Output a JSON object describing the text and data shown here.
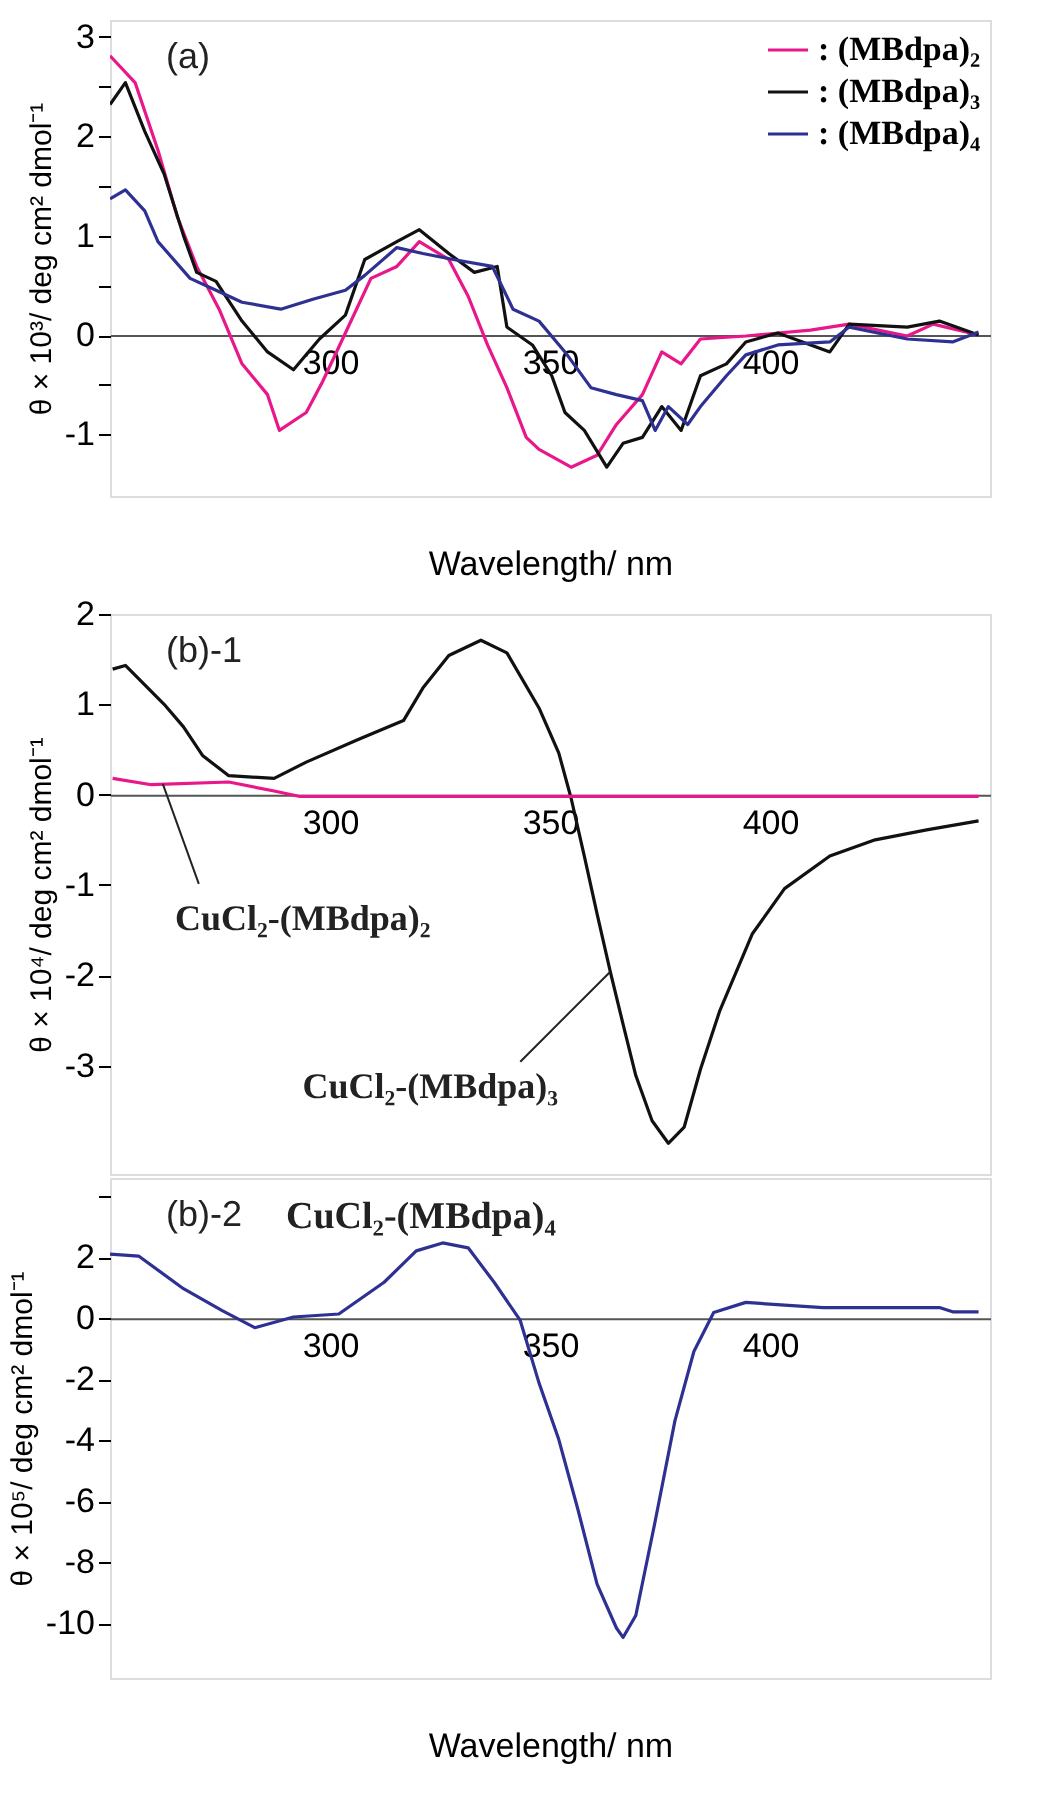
{
  "chart_data": [
    {
      "type": "line",
      "xlabel": "Wavelength/ nm",
      "ylabel": "θ × 10³/ deg cm² dmol⁻¹",
      "legend": "top right",
      "xlim": [
        250,
        450
      ],
      "xticks": [
        300,
        350,
        400
      ],
      "ylim": [
        -1.62,
        3.17
      ],
      "yticks": [
        -1,
        {
          "value": -0.5,
          "label": null
        },
        0,
        {
          "value": 0.5,
          "label": null
        },
        1,
        {
          "value": 1.5,
          "label": null
        },
        2,
        {
          "value": 2.5,
          "label": null
        },
        3
      ],
      "grid": false,
      "annotations": [
        "(a)"
      ],
      "series": [
        {
          "name": ": (MBdpa)₂",
          "color": "#e8178a",
          "x": [
            250,
            255.7,
            260.9,
            265.3,
            269.7,
            274.8,
            280,
            285.8,
            288.5,
            294.6,
            298.3,
            303.5,
            309.3,
            315.2,
            320.3,
            327,
            331.4,
            335.8,
            340.2,
            344.6,
            347.5,
            354.8,
            360.7,
            365.1,
            371,
            375.4,
            379.8,
            384.2,
            394.5,
            409.2,
            418,
            431.2,
            437.1,
            447.4
          ],
          "values": [
            2.81,
            2.54,
            1.86,
            1.19,
            0.69,
            0.26,
            -0.29,
            -0.6,
            -0.96,
            -0.78,
            -0.47,
            0.02,
            0.57,
            0.69,
            0.94,
            0.76,
            0.39,
            -0.1,
            -0.53,
            -1.03,
            -1.15,
            -1.33,
            -1.21,
            -0.9,
            -0.6,
            -0.17,
            -0.29,
            -0.04,
            -0.01,
            0.05,
            0.11,
            -0.01,
            0.11,
            0
          ]
        },
        {
          "name": ": (MBdpa)₃",
          "color": "#111111",
          "x": [
            250,
            253.5,
            257.9,
            262.3,
            266.7,
            269.7,
            274.1,
            280,
            285.8,
            291.7,
            297.6,
            303.5,
            307.9,
            315.2,
            320.3,
            327,
            332.8,
            338,
            340.2,
            346,
            350.4,
            353.4,
            357.8,
            362.9,
            366.6,
            371,
            375.4,
            379.8,
            384.2,
            390.1,
            394.5,
            401.8,
            413.6,
            418,
            431.2,
            438.5,
            447.4
          ],
          "values": [
            2.32,
            2.54,
            2.05,
            1.62,
            1.0,
            0.63,
            0.54,
            0.14,
            -0.17,
            -0.35,
            -0.04,
            0.2,
            0.76,
            0.94,
            1.06,
            0.82,
            0.63,
            0.69,
            0.08,
            -0.1,
            -0.41,
            -0.78,
            -0.96,
            -1.33,
            -1.09,
            -1.03,
            -0.72,
            -0.96,
            -0.41,
            -0.29,
            -0.07,
            0.02,
            -0.17,
            0.11,
            0.08,
            0.14,
            0
          ]
        },
        {
          "name": ": (MBdpa)₄",
          "color": "#2e3192",
          "x": [
            250,
            253.5,
            257.9,
            260.9,
            268.2,
            274.1,
            280,
            288.8,
            296.1,
            303.5,
            307.9,
            315.2,
            321.1,
            328,
            336.9,
            341.6,
            347.5,
            353.4,
            359.3,
            365.1,
            371,
            373.9,
            376.9,
            381.3,
            384.2,
            390.1,
            394.5,
            401.8,
            413.6,
            418,
            431.2,
            441.5,
            447.4
          ],
          "values": [
            1.37,
            1.46,
            1.25,
            0.94,
            0.57,
            0.45,
            0.33,
            0.26,
            0.36,
            0.45,
            0.6,
            0.88,
            0.82,
            0.76,
            0.69,
            0.26,
            0.14,
            -0.17,
            -0.53,
            -0.6,
            -0.66,
            -0.96,
            -0.72,
            -0.9,
            -0.72,
            -0.41,
            -0.2,
            -0.1,
            -0.07,
            0.08,
            -0.04,
            -0.07,
            0.03
          ]
        }
      ]
    },
    {
      "type": "line",
      "ylabel": "θ × 10⁴/ deg cm² dmol⁻¹",
      "legend": false,
      "xlim": [
        250,
        450
      ],
      "xticks": [
        300,
        350,
        400
      ],
      "ylim": [
        -4.2,
        2
      ],
      "yticks": [
        -3,
        -2,
        -1,
        0,
        1,
        2
      ],
      "grid": false,
      "annotations": [
        "(b)-1",
        {
          "text": "CuCl₂-(MBdpa)₂",
          "x": 262,
          "y": 0.12
        },
        {
          "text": "CuCl₂-(MBdpa)₃",
          "x": 363.7,
          "y": -1.96
        }
      ],
      "series": [
        {
          "color": "#111111",
          "x": [
            250.6,
            253.5,
            262.3,
            266.7,
            271.1,
            277,
            287.3,
            294.6,
            306.4,
            316.7,
            321.1,
            327,
            334.3,
            340.2,
            347.5,
            352,
            354.8,
            357.8,
            360.7,
            363.7,
            366.6,
            369.5,
            373.2,
            376.9,
            380.5,
            384.2,
            388.6,
            396,
            403.3,
            413.6,
            423.9,
            435.6,
            447.4
          ],
          "values": [
            1.39,
            1.43,
            1.0,
            0.75,
            0.43,
            0.21,
            0.18,
            0.36,
            0.61,
            0.82,
            1.18,
            1.54,
            1.71,
            1.57,
            0.96,
            0.46,
            -0.04,
            -0.68,
            -1.32,
            -1.96,
            -2.54,
            -3.11,
            -3.61,
            -3.86,
            -3.68,
            -3.04,
            -2.39,
            -1.54,
            -1.04,
            -0.68,
            -0.5,
            -0.39,
            -0.29
          ]
        },
        {
          "color": "#e8178a",
          "x": [
            250.6,
            259.4,
            277,
            287.3,
            293.2,
            447.4
          ],
          "values": [
            0.18,
            0.11,
            0.14,
            0.04,
            -0.02,
            -0.02
          ]
        }
      ]
    },
    {
      "type": "line",
      "xlabel": "Wavelength/ nm",
      "ylabel": "θ × 10⁵/ deg cm² dmol⁻¹",
      "legend": false,
      "xlim": [
        250,
        450
      ],
      "xticks": [
        300,
        350,
        400
      ],
      "ylim": [
        -11.8,
        4.6
      ],
      "yticks": [
        -10,
        -8,
        -6,
        -4,
        -2,
        0,
        2,
        {
          "value": 4,
          "label": null
        }
      ],
      "grid": false,
      "annotations": [
        "(b)-2",
        "CuCl₂-(MBdpa)₄"
      ],
      "series": [
        {
          "color": "#2e3192",
          "x": [
            250,
            256.5,
            266.7,
            275.5,
            282.9,
            291.7,
            302,
            312.3,
            319.6,
            325.6,
            331.4,
            337.3,
            343.2,
            347.5,
            352,
            356.3,
            360.7,
            365.1,
            366.6,
            369.5,
            373.9,
            378.4,
            382.7,
            387.2,
            394.5,
            403.3,
            412.1,
            438.5,
            441.5,
            447.4
          ],
          "values": [
            2.1,
            2.04,
            0.97,
            0.25,
            -0.31,
            0.04,
            0.14,
            1.18,
            2.21,
            2.47,
            2.31,
            1.18,
            -0.06,
            -2.12,
            -3.98,
            -6.25,
            -8.72,
            -10.16,
            -10.47,
            -9.75,
            -6.66,
            -3.36,
            -1.09,
            0.19,
            0.52,
            0.43,
            0.35,
            0.35,
            0.21,
            0.21
          ]
        }
      ]
    }
  ]
}
